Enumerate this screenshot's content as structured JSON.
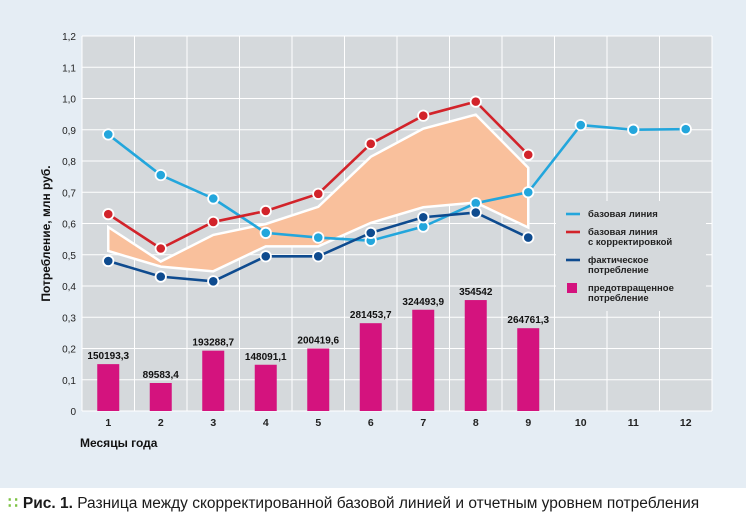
{
  "caption": {
    "label": "Рис. 1.",
    "text": "Разница между скорректированной базовой линией и отчетным уровнем потребления"
  },
  "colors": {
    "panel": "#e5edf4",
    "plot": "#d5d9dc",
    "grid": "#ffffff",
    "baseline": "#23a6dc",
    "corrected": "#d2232a",
    "actual": "#0e4b8f",
    "prevented": "#d4137e",
    "band": "#f9c09c",
    "caption_dots": "#7cc242"
  },
  "chart_data": {
    "type": "bar+line",
    "title": "",
    "xlabel": "Месяцы года",
    "ylabel": "Потребление, млн руб.",
    "ylim": [
      0,
      1.2
    ],
    "y_ticks": [
      "0",
      "0,1",
      "0,2",
      "0,3",
      "0,4",
      "0,5",
      "0,6",
      "0,7",
      "0,8",
      "0,9",
      "1,0",
      "1,1",
      "1,2"
    ],
    "categories": [
      "1",
      "2",
      "3",
      "4",
      "5",
      "6",
      "7",
      "8",
      "9",
      "10",
      "11",
      "12"
    ],
    "grid": true,
    "legend_position": "right",
    "series": [
      {
        "name": "базовая линия",
        "type": "line",
        "color": "#23a6dc",
        "values": [
          0.885,
          0.755,
          0.68,
          0.57,
          0.555,
          0.545,
          0.59,
          0.665,
          0.7,
          0.915,
          0.9,
          0.902
        ]
      },
      {
        "name": "базовая линия с корректировкой",
        "type": "line",
        "color": "#d2232a",
        "values": [
          0.63,
          0.52,
          0.605,
          0.64,
          0.695,
          0.855,
          0.945,
          0.99,
          0.82,
          null,
          null,
          null
        ]
      },
      {
        "name": "фактическое потребление",
        "type": "line",
        "color": "#0e4b8f",
        "values": [
          0.48,
          0.43,
          0.415,
          0.495,
          0.495,
          0.57,
          0.62,
          0.635,
          0.555,
          null,
          null,
          null
        ]
      },
      {
        "name": "предотвращенное потребление",
        "type": "bar",
        "color": "#d4137e",
        "values": [
          0.15,
          0.0896,
          0.193,
          0.148,
          0.2,
          0.281,
          0.324,
          0.355,
          0.265,
          null,
          null,
          null
        ],
        "labels": [
          "150193,3",
          "89583,4",
          "193288,7",
          "148091,1",
          "200419,6",
          "281453,7",
          "324493,9",
          "354542",
          "264761,3",
          "",
          "",
          ""
        ]
      }
    ]
  }
}
